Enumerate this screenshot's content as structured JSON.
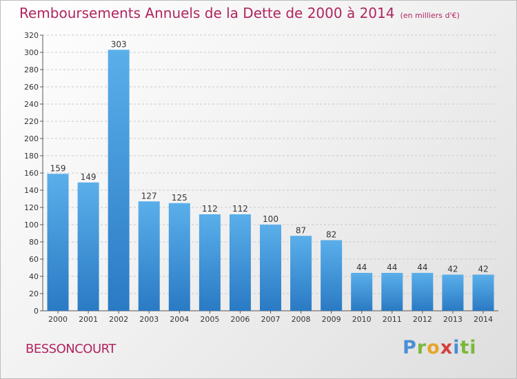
{
  "header": {
    "title": "Remboursements Annuels de la Dette de 2000 à 2014",
    "subtitle": "(en milliers d'€)"
  },
  "footer": {
    "commune": "BESSONCOURT",
    "brand_parts": [
      "P",
      "r",
      "o",
      "x",
      "i",
      "ti"
    ]
  },
  "colors": {
    "bar_top": "#5aafea",
    "bar_bottom": "#2a7ac4",
    "title": "#b0245f",
    "grid": "#c8c8c8"
  },
  "chart_data": {
    "type": "bar",
    "title": "Remboursements Annuels de la Dette de 2000 à 2014",
    "subtitle": "(en milliers d'€)",
    "xlabel": "",
    "ylabel": "",
    "categories": [
      "2000",
      "2001",
      "2002",
      "2003",
      "2004",
      "2005",
      "2006",
      "2007",
      "2008",
      "2009",
      "2010",
      "2011",
      "2012",
      "2013",
      "2014"
    ],
    "values": [
      159,
      149,
      303,
      127,
      125,
      112,
      112,
      100,
      87,
      82,
      44,
      44,
      44,
      42,
      42
    ],
    "data_labels": [
      "159",
      "149",
      "303",
      "127",
      "125",
      "112",
      "112",
      "100",
      "87",
      "82",
      "44",
      "44",
      "44",
      "42",
      "42"
    ],
    "ylim": [
      0,
      320
    ],
    "yticks": [
      0,
      20,
      40,
      60,
      80,
      100,
      120,
      140,
      160,
      180,
      200,
      220,
      240,
      260,
      280,
      300,
      320
    ],
    "ytick_labels": [
      "0",
      "20",
      "40",
      "60",
      "80",
      "100",
      "120",
      "140",
      "160",
      "180",
      "200",
      "220",
      "240",
      "260",
      "280",
      "300",
      "320"
    ],
    "grid": true,
    "legend": "none"
  }
}
